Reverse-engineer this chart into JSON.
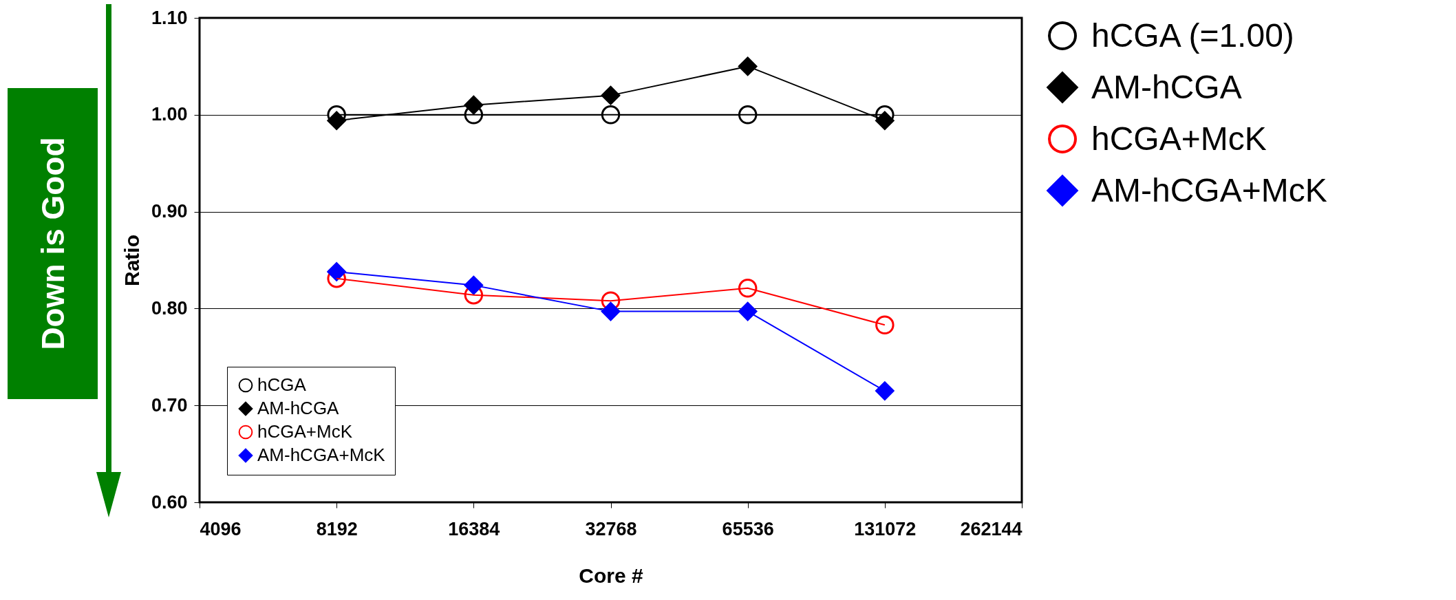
{
  "chart_data": {
    "type": "line",
    "xlabel": "Core #",
    "ylabel": "Ratio",
    "x": [
      8192,
      16384,
      32768,
      65536,
      131072
    ],
    "series": [
      {
        "name": "hCGA",
        "color": "#000000",
        "marker": "circle",
        "values": [
          1.0,
          1.0,
          1.0,
          1.0,
          1.0
        ]
      },
      {
        "name": "AM-hCGA",
        "color": "#000000",
        "marker": "diamond",
        "values": [
          0.994,
          1.01,
          1.02,
          1.05,
          0.994
        ]
      },
      {
        "name": "hCGA+McK",
        "color": "#ff0000",
        "marker": "circle",
        "values": [
          0.831,
          0.814,
          0.808,
          0.821,
          0.783
        ]
      },
      {
        "name": "AM-hCGA+McK",
        "color": "#0000ff",
        "marker": "diamond",
        "values": [
          0.838,
          0.824,
          0.797,
          0.797,
          0.715
        ]
      }
    ],
    "log": "x",
    "xlim": [
      4096,
      262144
    ],
    "xticks": [
      4096,
      8192,
      16384,
      32768,
      65536,
      131072,
      262144
    ],
    "ylim": [
      0.6,
      1.1
    ],
    "yticks": [
      {
        "value": 0.6,
        "label": "0.60"
      },
      {
        "value": 0.7,
        "label": "0.70"
      },
      {
        "value": 0.8,
        "label": "0.80"
      },
      {
        "value": 0.9,
        "label": "0.90"
      },
      {
        "value": 1.0,
        "label": "1.00"
      },
      {
        "value": 1.1,
        "label": "1.10"
      }
    ],
    "grid": "y",
    "legend": "bottom left",
    "line_style": "solid",
    "annotations": [
      "Down is Good",
      "hCGA (=1.00)",
      "AM-hCGA",
      "hCGA+McK",
      "AM-hCGA+McK"
    ]
  }
}
